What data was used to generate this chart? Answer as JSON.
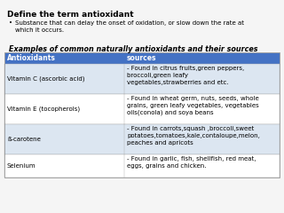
{
  "bg_color": "#f5f5f5",
  "title": "Define the term antioxidant",
  "bullet": "Substance that can delay the onset of oxidation, or slow down the rate at\nwhich it occurs.",
  "table_title": "Examples of common naturally antioxidants and their sources",
  "header": [
    "Antioxidants",
    "sources"
  ],
  "header_bg": "#4472c4",
  "header_fg": "#ffffff",
  "rows": [
    {
      "antioxidant": "Vitamin C (ascorbic acid)",
      "source": "- Found in citrus fruits,green peppers,\nbroccoli,green leafy\nvegetables,strawberries and etc.",
      "row_bg": "#dce6f1"
    },
    {
      "antioxidant": "Vitamin E (tocopherols)",
      "source": "- Found in wheat germ, nuts, seeds, whole\ngrains, green leafy vegetables, vegetables\noils(conola) and soya beans",
      "row_bg": "#ffffff"
    },
    {
      "antioxidant": "ß-carotene",
      "source": "- Found in carrots,squash ,broccoli,sweet\npotatoes,tomatoes,kale,contaloupe,melon,\npeaches and apricots",
      "row_bg": "#dce6f1"
    },
    {
      "antioxidant": "Selenium",
      "source": "- Found in garlic, fish, shellfish, red meat,\neggs, grains and chicken.",
      "row_bg": "#ffffff"
    }
  ],
  "title_fontsize": 6.5,
  "table_title_fontsize": 5.8,
  "cell_fontsize": 5.0,
  "header_fontsize": 5.5
}
